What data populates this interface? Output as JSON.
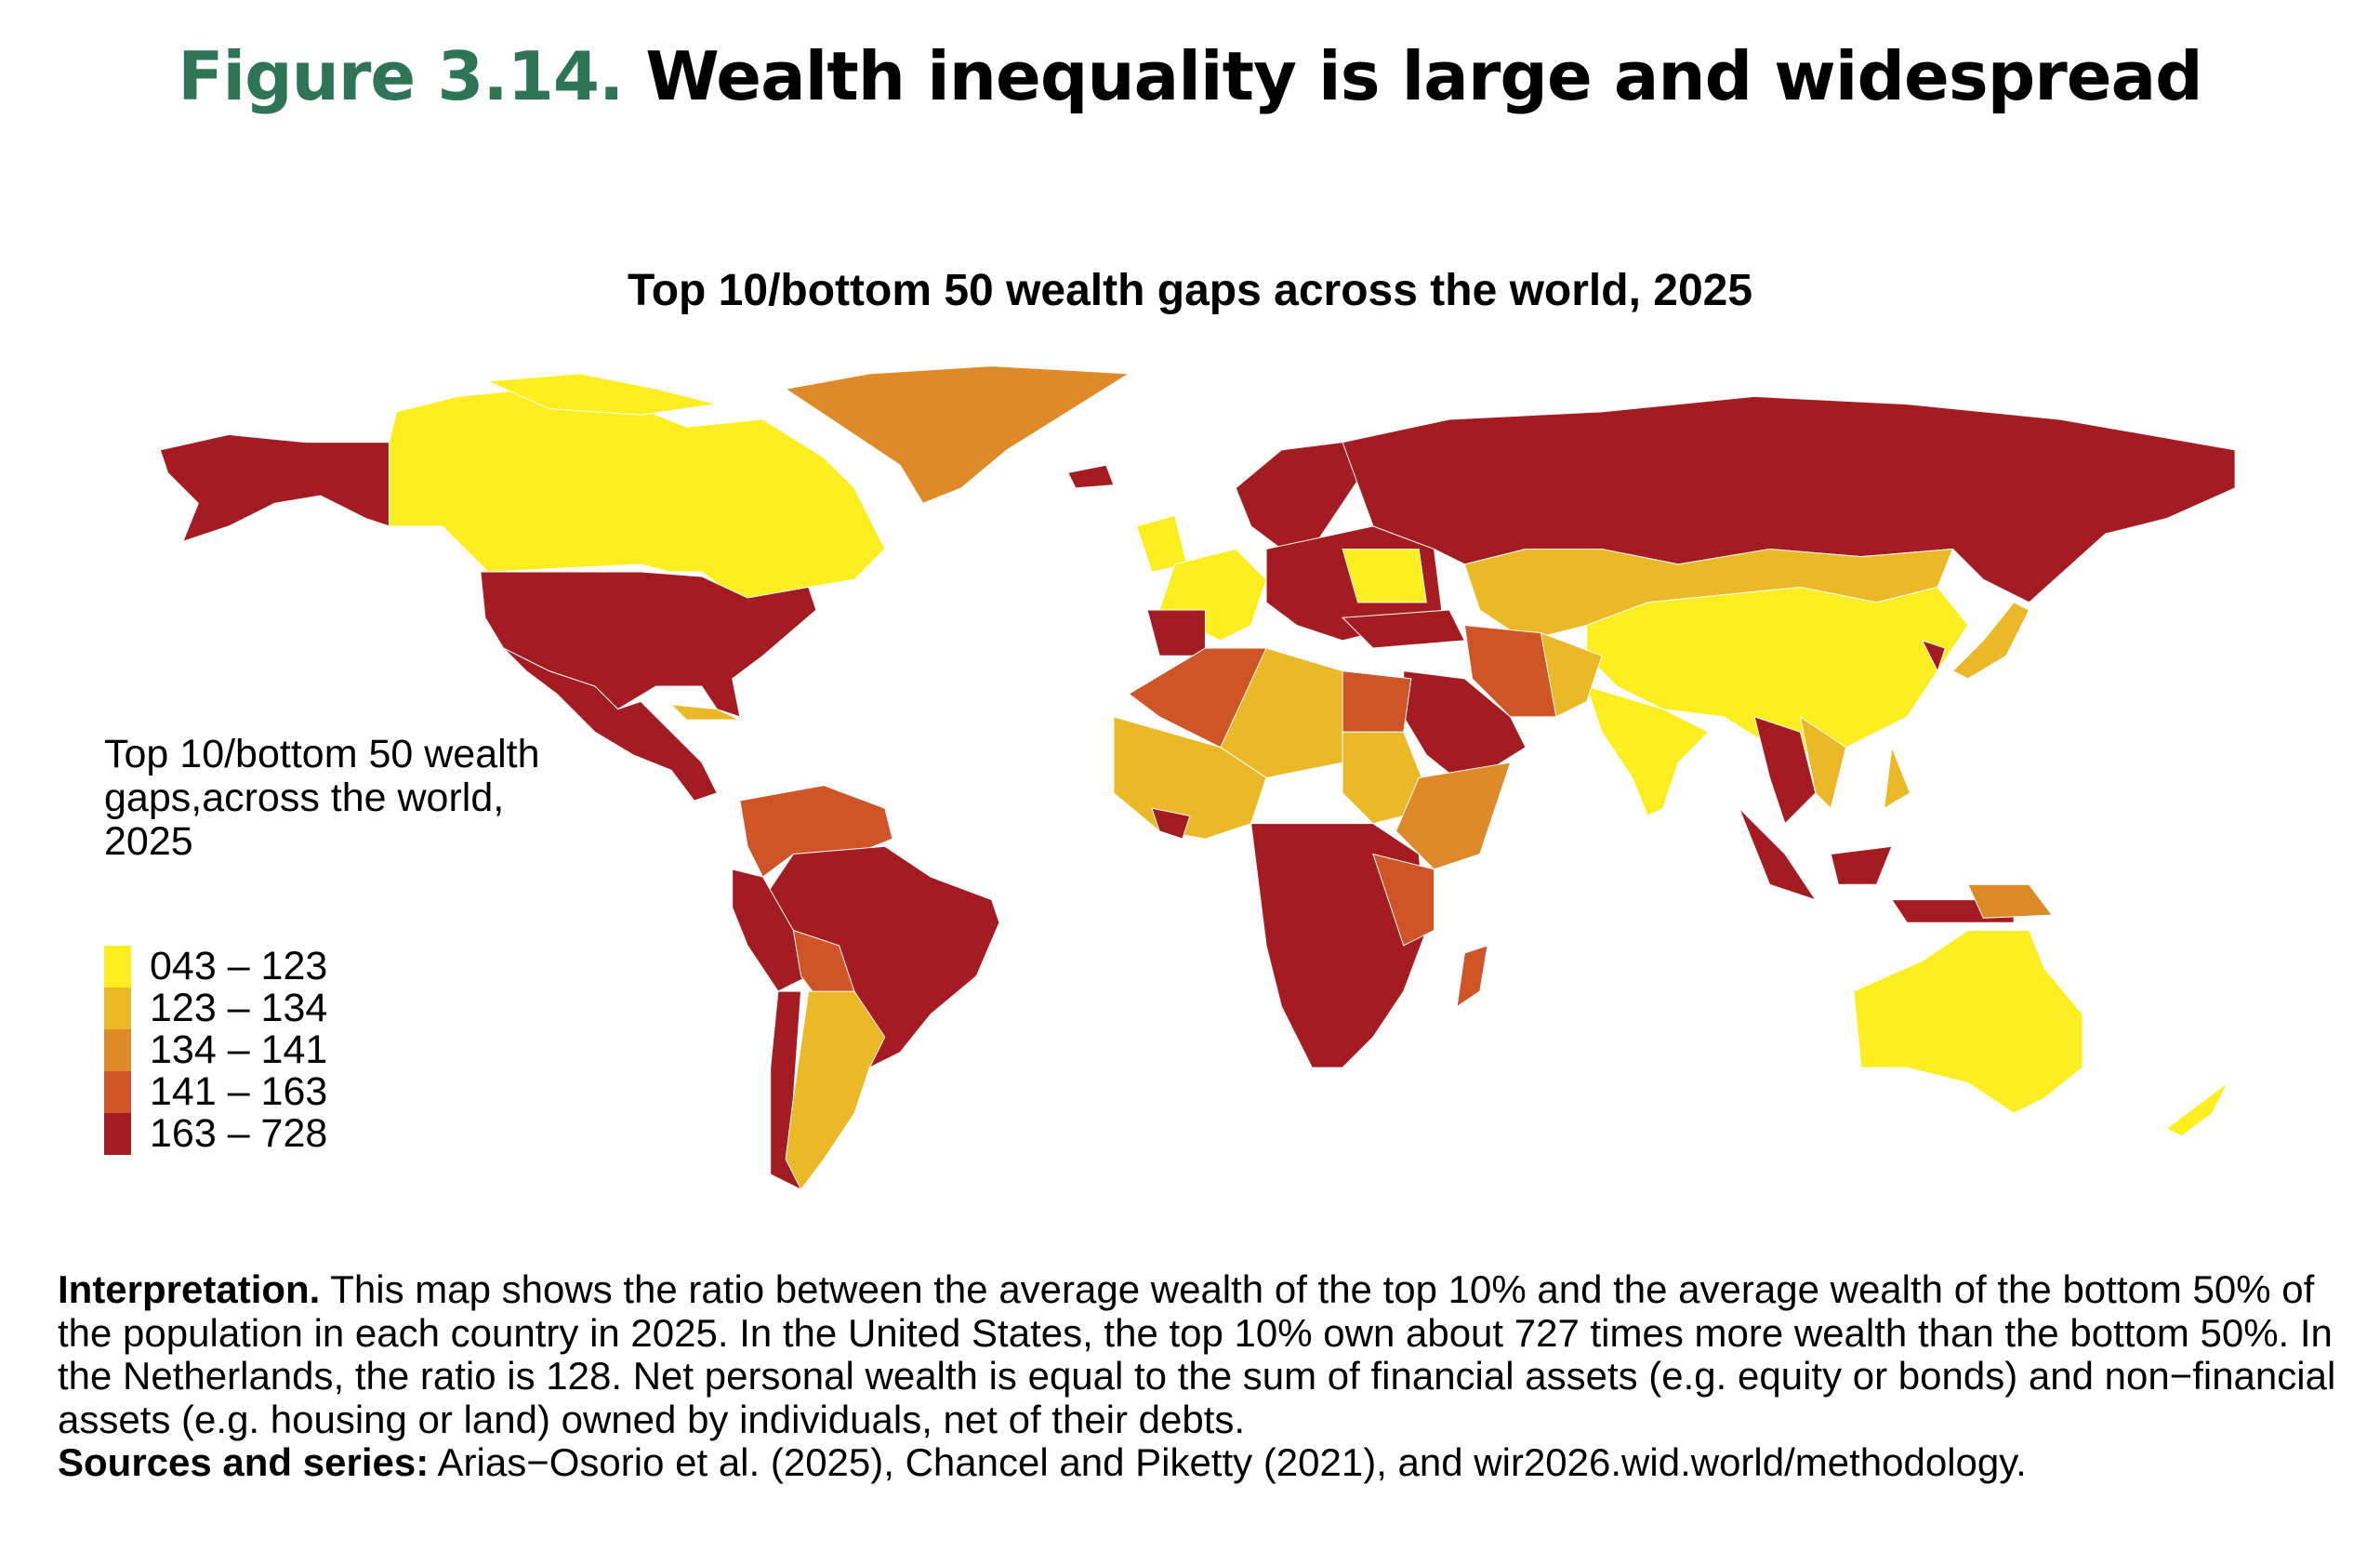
{
  "figure": {
    "number": "Figure 3.14.",
    "title": "Wealth inequality is large and widespread",
    "number_color": "#2e7556"
  },
  "chart_data": {
    "type": "choropleth",
    "title": "Top 10/bottom 50 wealth gaps across the world, 2025",
    "legend_title": "Top 10/bottom 50 wealth gaps,across the world, 2025",
    "legend_placement": "left",
    "bins": [
      {
        "label": "043 – 123",
        "min": 43,
        "max": 123,
        "color": "#fcee21"
      },
      {
        "label": "123 – 134",
        "min": 123,
        "max": 134,
        "color": "#ebb927"
      },
      {
        "label": "134 – 141",
        "min": 134,
        "max": 141,
        "color": "#de8a28"
      },
      {
        "label": "141 – 163",
        "min": 141,
        "max": 163,
        "color": "#cf5426"
      },
      {
        "label": "163 – 728",
        "min": 163,
        "max": 728,
        "color": "#a51b22"
      }
    ]
  },
  "caption": {
    "interpretation_label": "Interpretation.",
    "interpretation_text": " This map shows the ratio between the average wealth of the top 10% and the average wealth of the bottom 50% of the population in each country in 2025. In the United States, the top 10% own about 727 times more wealth than the bottom 50%. In the Netherlands, the ratio is 128. Net personal wealth is equal to the sum of financial assets (e.g. equity or bonds) and non−financial assets (e.g. housing or land) owned by individuals, net of their debts.",
    "sources_label": "Sources and series:",
    "sources_text": " Arias−Osorio et al. (2025), Chancel and Piketty (2021), and wir2026.wid.world/methodology."
  }
}
